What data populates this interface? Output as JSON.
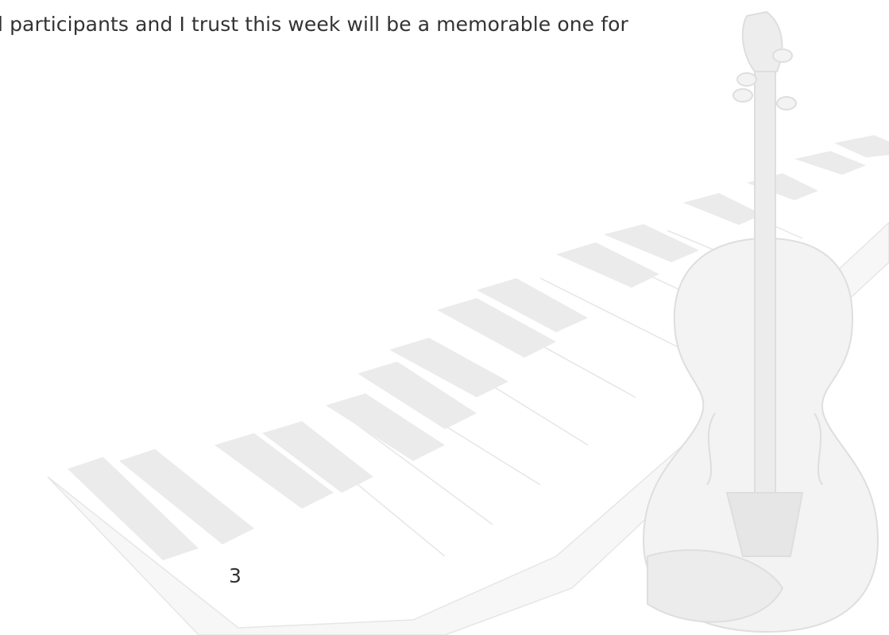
{
  "body": {
    "text": "l participants and I trust this week will be a memorable one for"
  },
  "page_number": "3"
}
